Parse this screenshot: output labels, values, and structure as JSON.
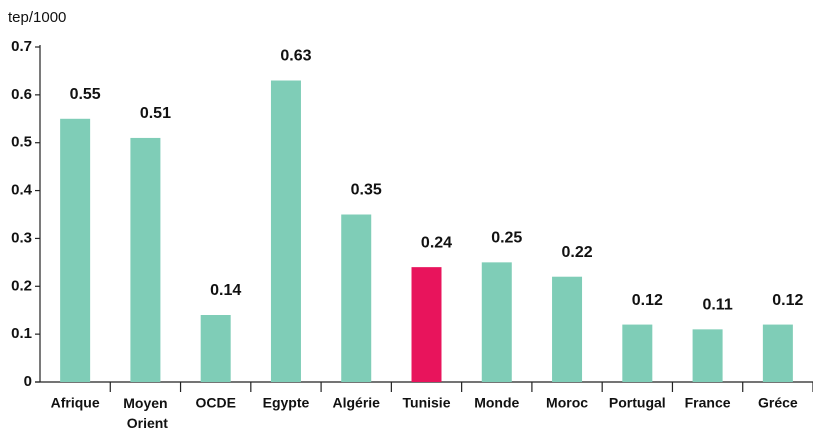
{
  "chart_data": {
    "type": "bar",
    "y_label": "tep/1000",
    "categories": [
      "Afrique",
      "Moyen Orient",
      "OCDE",
      "Egypte",
      "Algérie",
      "Tunisie",
      "Monde",
      "Moroc",
      "Portugal",
      "France",
      "Gréce"
    ],
    "values": [
      0.55,
      0.51,
      0.14,
      0.63,
      0.35,
      0.24,
      0.25,
      0.22,
      0.12,
      0.11,
      0.12
    ],
    "colors": [
      "#7fcdb7",
      "#7fcdb7",
      "#7fcdb7",
      "#7fcdb7",
      "#7fcdb7",
      "#e8145c",
      "#7fcdb7",
      "#7fcdb7",
      "#7fcdb7",
      "#7fcdb7",
      "#7fcdb7"
    ],
    "ylim": [
      0,
      0.7
    ],
    "yticks": [
      0,
      0.1,
      0.2,
      0.3,
      0.4,
      0.5,
      0.6,
      0.7
    ],
    "grid": false
  }
}
